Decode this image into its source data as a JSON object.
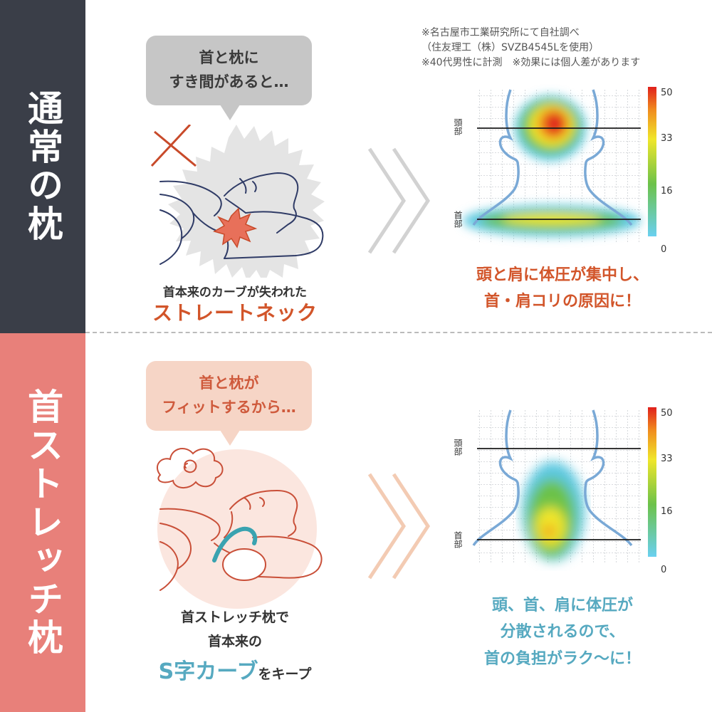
{
  "sides": {
    "top": "通常の枕",
    "bottom": "首ストレッチ枕"
  },
  "top_panel": {
    "bubble": "首と枕に\nすき間があると…",
    "caption_line1": "首本来のカーブが失われた",
    "caption_line2": "ストレートネック",
    "result_lines": [
      "頭と肩に体圧が集中し、",
      "首・肩コリの原因に！"
    ]
  },
  "bottom_panel": {
    "bubble": "首と枕が\nフィットするから…",
    "caption_line1": "首ストレッチ枕で",
    "caption_line2": "首本来の",
    "caption_highlight": "S字カーブ",
    "caption_suffix": "をキープ",
    "result_lines": [
      "頭、首、肩に体圧が",
      "分散されるので、",
      "首の負担がラク〜に！"
    ]
  },
  "note": "※名古屋市工業研究所にて自社調べ\n（住友理工（株）SVZB4545Lを使用）\n※40代男性に計測　※効果には個人差があります",
  "heatmap": {
    "label_head": "頭部",
    "label_neck": "首部",
    "scale_labels": [
      "50",
      "33",
      "16",
      "0"
    ]
  },
  "colors": {
    "dark_side": "#3a3e48",
    "pink_side": "#e8807a",
    "orange_text": "#d2552a",
    "teal_text": "#56a9c0"
  }
}
